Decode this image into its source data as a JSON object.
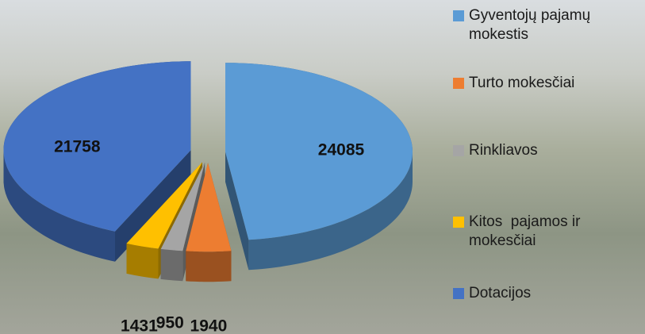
{
  "chart_data": {
    "type": "pie3d",
    "series": [
      {
        "name": "Gyventojų pajamų mokestis",
        "color": "#5b9bd5",
        "values": [
          24085
        ]
      },
      {
        "name": "Turto mokesčiai",
        "color": "#ed7d31",
        "values": [
          1940
        ]
      },
      {
        "name": "Rinkliavos",
        "color": "#a5a5a5",
        "values": [
          950
        ]
      },
      {
        "name": "Kitos  pajamos ir mokesčiai",
        "color": "#ffc000",
        "values": [
          1431
        ]
      },
      {
        "name": "Dotacijos",
        "color": "#4472c4",
        "values": [
          21758
        ]
      }
    ],
    "legend": "right"
  }
}
